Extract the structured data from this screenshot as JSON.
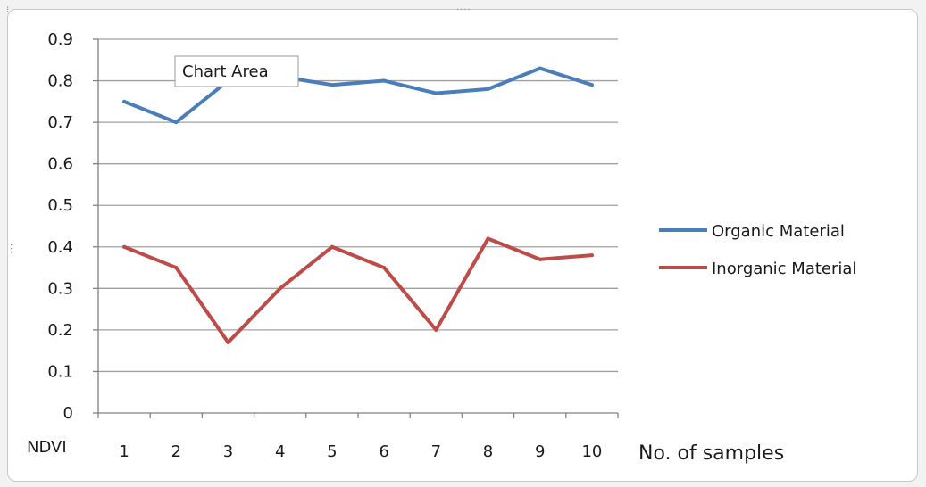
{
  "tooltip": {
    "text": "Chart Area"
  },
  "chart_data": {
    "type": "line",
    "title": "",
    "xlabel": "No. of samples",
    "ylabel": "NDVI",
    "categories": [
      "1",
      "2",
      "3",
      "4",
      "5",
      "6",
      "7",
      "8",
      "9",
      "10"
    ],
    "ylim": [
      0,
      0.9
    ],
    "yticks": [
      "0",
      "0.1",
      "0.2",
      "0.3",
      "0.4",
      "0.5",
      "0.6",
      "0.7",
      "0.8",
      "0.9"
    ],
    "grid": true,
    "legend_position": "right",
    "series": [
      {
        "name": "Organic Material",
        "color": "#4a7ebb",
        "values": [
          0.75,
          0.7,
          0.8,
          0.81,
          0.79,
          0.8,
          0.77,
          0.78,
          0.83,
          0.79
        ]
      },
      {
        "name": "Inorganic Material",
        "color": "#be4b48",
        "values": [
          0.4,
          0.35,
          0.17,
          0.3,
          0.4,
          0.35,
          0.2,
          0.42,
          0.37,
          0.38
        ]
      }
    ]
  }
}
